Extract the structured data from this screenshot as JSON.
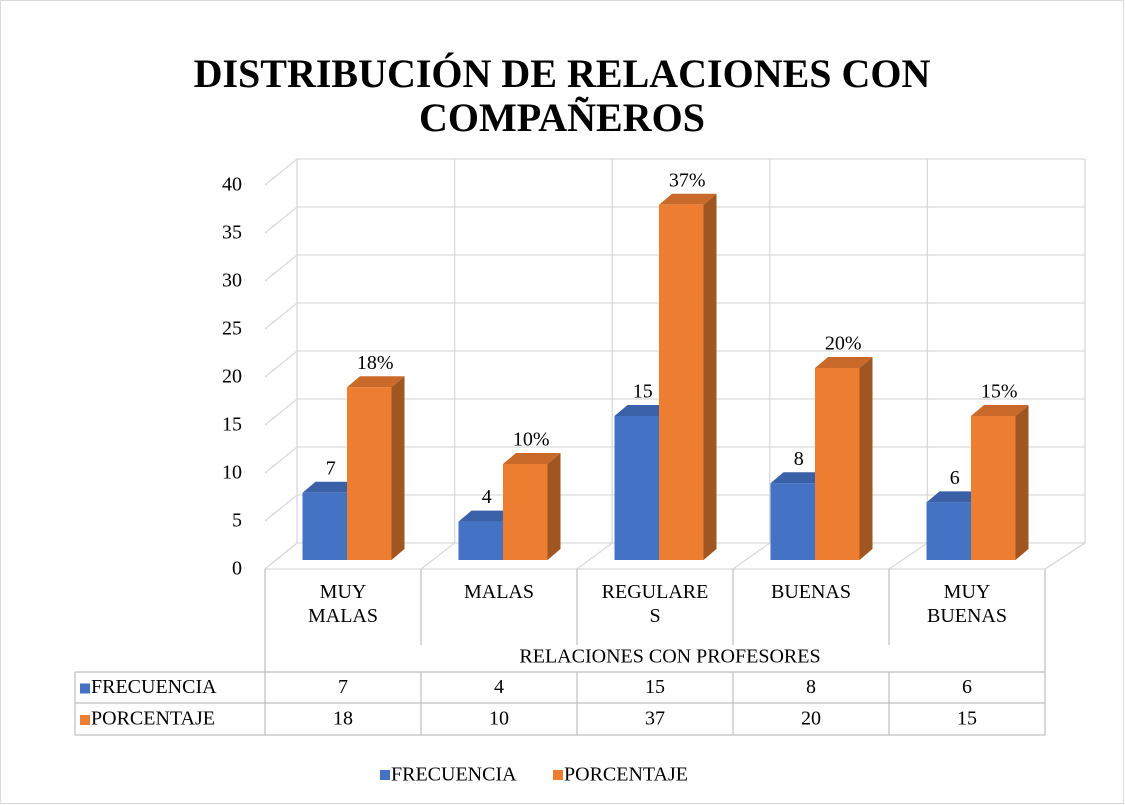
{
  "chart_data": {
    "type": "bar3d",
    "title": "DISTRIBUCIÓN DE RELACIONES CON COMPAÑEROS",
    "x_label": "RELACIONES CON PROFESORES",
    "categories": [
      "MUY MALAS",
      "MALAS",
      "REGULARES",
      "BUENAS",
      "MUY BUENAS"
    ],
    "series": [
      {
        "name": "FRECUENCIA",
        "color": "#4472c4",
        "values": [
          7,
          4,
          15,
          8,
          6
        ]
      },
      {
        "name": "PORCENTAJE",
        "color": "#ed7d31",
        "values": [
          18,
          10,
          37,
          20,
          15
        ],
        "value_labels": [
          "18%",
          "10%",
          "37%",
          "20%",
          "15%"
        ]
      }
    ],
    "ylim": [
      0,
      40
    ],
    "yticks": [
      0,
      5,
      10,
      15,
      20,
      25,
      30,
      35,
      40
    ],
    "grid": true,
    "data_table": true,
    "legend": "bottom"
  }
}
